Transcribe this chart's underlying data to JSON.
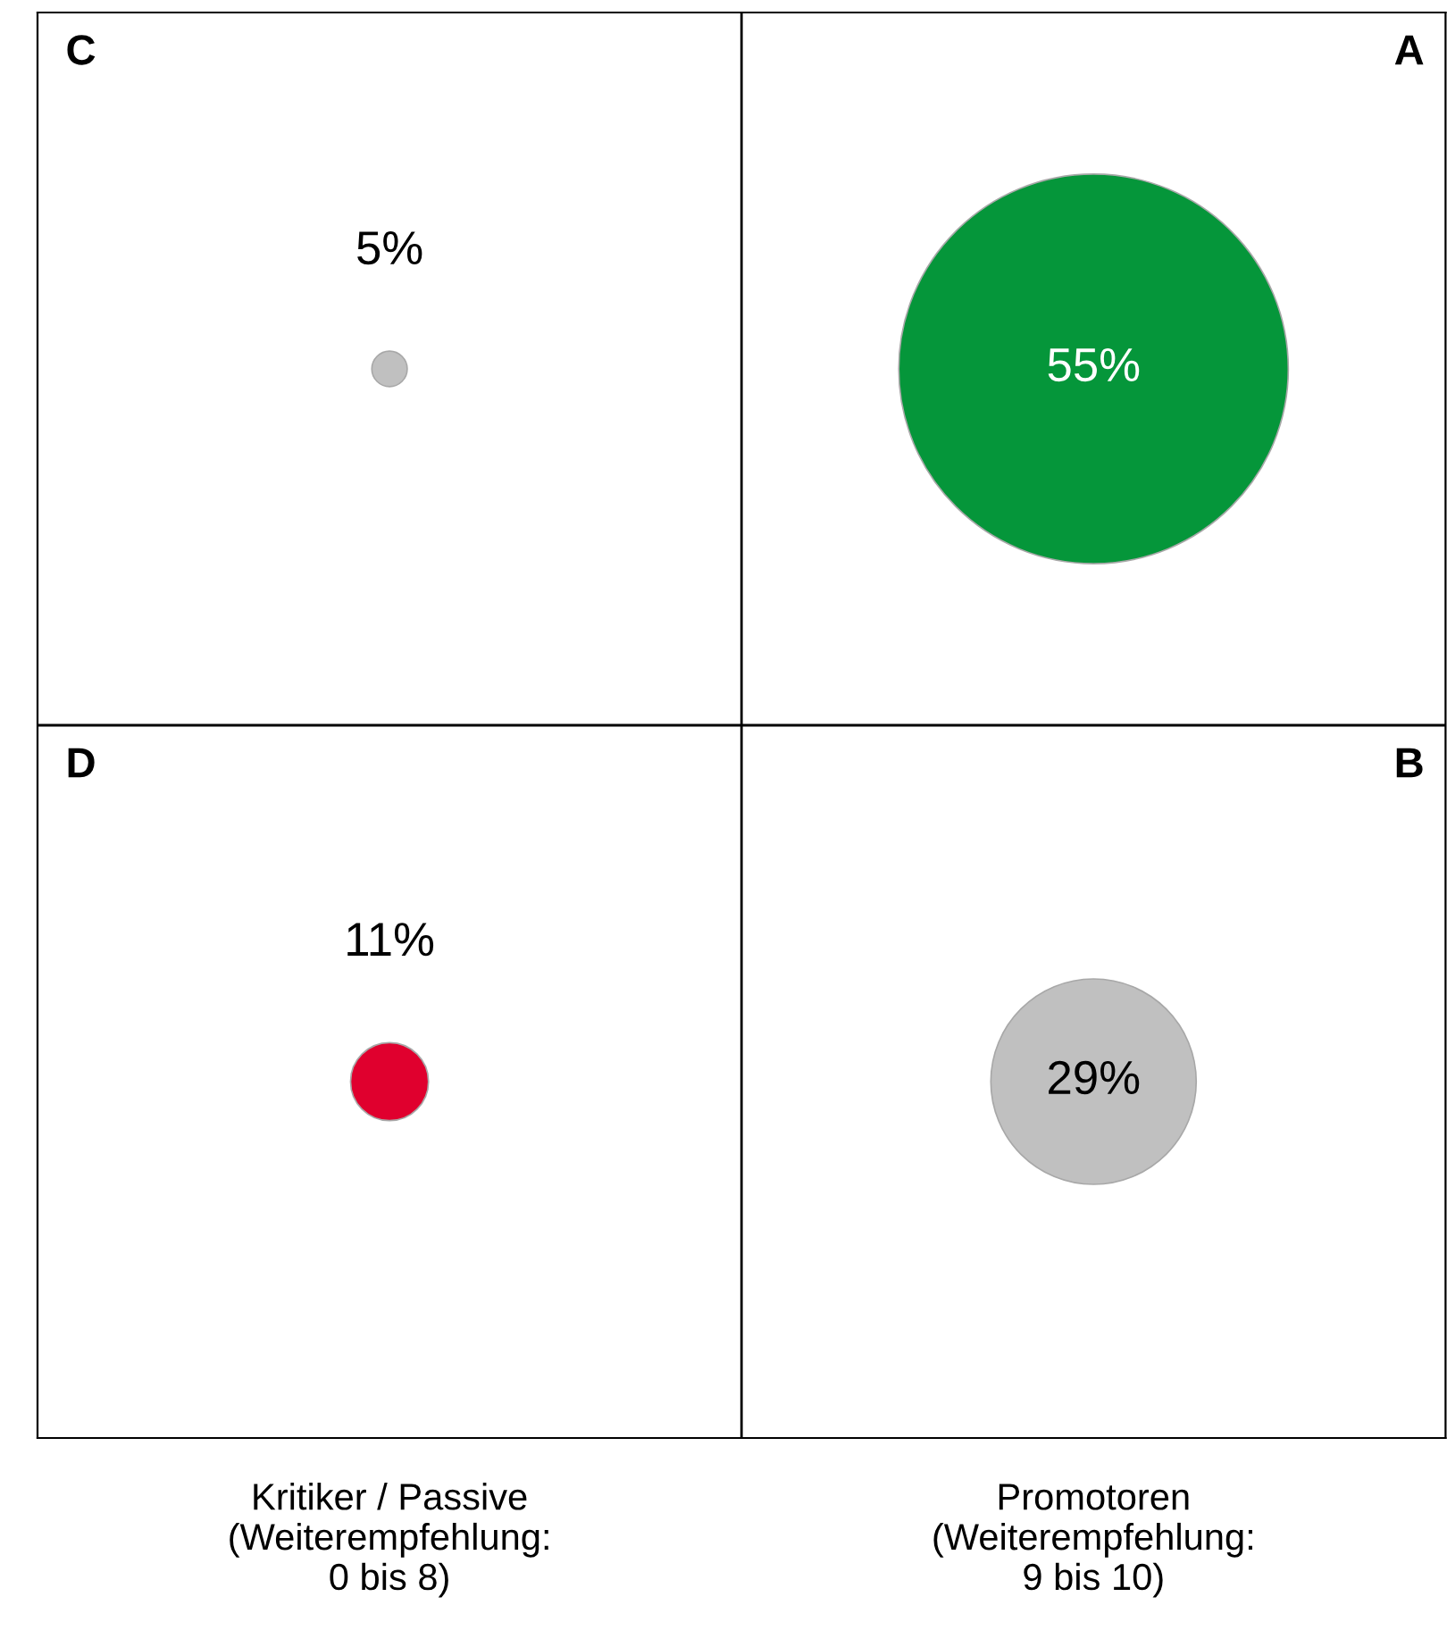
{
  "chart_data": {
    "type": "other",
    "categories": [
      "Kritiker / Passive\n(Weiterempfehlung:\n0 bis 8)",
      "Promotoren\n(Weiterempfehlung:\n9 bis 10)"
    ],
    "series": [
      {
        "colors": [
          "#c0c0c0",
          "#05963a"
        ],
        "values": [
          5,
          55
        ],
        "value_labels": [
          "5%",
          "55%"
        ]
      },
      {
        "colors": [
          "#e0002e",
          "#c0c0c0"
        ],
        "values": [
          11,
          29
        ],
        "value_labels": [
          "11%",
          "29%"
        ]
      }
    ],
    "annotations": [
      "C",
      "A",
      "D",
      "B"
    ]
  }
}
